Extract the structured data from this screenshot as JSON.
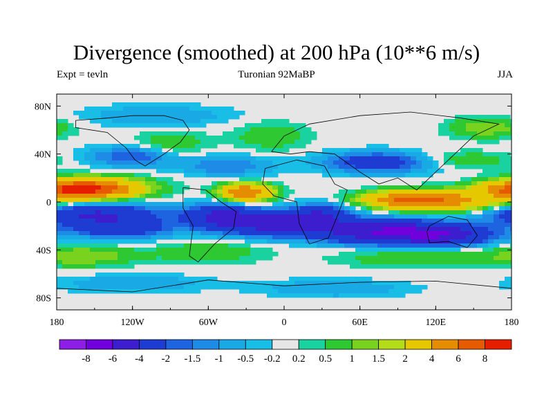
{
  "chart_data": {
    "type": "heatmap",
    "title": "Divergence (smoothed) at 200 hPa (10**6 m/s)",
    "subtitle_left": "Expt = tevln",
    "subtitle_center": "Turonian  92MaBP",
    "subtitle_right": "JJA",
    "x_ticks": [
      "180",
      "120W",
      "60W",
      "0",
      "60E",
      "120E",
      "180"
    ],
    "y_ticks": [
      "80N",
      "40N",
      "0",
      "40S",
      "80S"
    ],
    "x_range": [
      -180,
      180
    ],
    "y_range": [
      -90,
      90
    ],
    "colorbar_levels": [
      "-8",
      "-6",
      "-4",
      "-2",
      "-1.5",
      "-1",
      "-0.5",
      "-0.2",
      "0.2",
      "0.5",
      "1",
      "1.5",
      "2",
      "4",
      "6",
      "8"
    ],
    "colorbar_colors": [
      "#8c1ee6",
      "#7000dc",
      "#3c1ecf",
      "#1e3cd2",
      "#1e64e1",
      "#1e8ce6",
      "#19aae6",
      "#19bee6",
      "#e6e6e6",
      "#19d2a0",
      "#2dc832",
      "#78d21e",
      "#b4dc19",
      "#e6c800",
      "#e68c00",
      "#e65a00",
      "#e61e00"
    ],
    "fields": [
      {
        "lon": -150,
        "lat": 12,
        "sx": 30,
        "sy": 6,
        "v": 4
      },
      {
        "lon": -165,
        "lat": 10,
        "sx": 25,
        "sy": 5,
        "v": 6
      },
      {
        "lon": -150,
        "lat": -10,
        "sx": 35,
        "sy": 6,
        "v": -4
      },
      {
        "lon": -130,
        "lat": -22,
        "sx": 30,
        "sy": 6,
        "v": -3
      },
      {
        "lon": -120,
        "lat": 38,
        "sx": 25,
        "sy": 6,
        "v": -2
      },
      {
        "lon": -30,
        "lat": 8,
        "sx": 14,
        "sy": 5,
        "v": 6
      },
      {
        "lon": -50,
        "lat": -12,
        "sx": 20,
        "sy": 7,
        "v": -4
      },
      {
        "lon": -5,
        "lat": -18,
        "sx": 30,
        "sy": 7,
        "v": -5
      },
      {
        "lon": 30,
        "lat": -10,
        "sx": 15,
        "sy": 6,
        "v": -3
      },
      {
        "lon": 80,
        "lat": -25,
        "sx": 35,
        "sy": 7,
        "v": -6
      },
      {
        "lon": 130,
        "lat": -28,
        "sx": 25,
        "sy": 6,
        "v": -4
      },
      {
        "lon": 100,
        "lat": 2,
        "sx": 25,
        "sy": 5,
        "v": 6
      },
      {
        "lon": 140,
        "lat": 0,
        "sx": 30,
        "sy": 6,
        "v": 3
      },
      {
        "lon": 75,
        "lat": 33,
        "sx": 30,
        "sy": 6,
        "v": -3
      },
      {
        "lon": 140,
        "lat": 35,
        "sx": 30,
        "sy": 5,
        "v": 1
      },
      {
        "lon": 160,
        "lat": 62,
        "sx": 20,
        "sy": 6,
        "v": 1.5
      },
      {
        "lon": -90,
        "lat": 48,
        "sx": 20,
        "sy": 8,
        "v": 1
      },
      {
        "lon": -45,
        "lat": 30,
        "sx": 25,
        "sy": 6,
        "v": -1.5
      },
      {
        "lon": -160,
        "lat": -45,
        "sx": 30,
        "sy": 6,
        "v": 1.5
      },
      {
        "lon": -60,
        "lat": -42,
        "sx": 30,
        "sy": 6,
        "v": 1
      },
      {
        "lon": 100,
        "lat": -46,
        "sx": 40,
        "sy": 6,
        "v": 1
      },
      {
        "lon": -120,
        "lat": -68,
        "sx": 40,
        "sy": 5,
        "v": -1
      },
      {
        "lon": 40,
        "lat": -72,
        "sx": 40,
        "sy": 5,
        "v": -1
      },
      {
        "lon": -100,
        "lat": 72,
        "sx": 40,
        "sy": 6,
        "v": -1
      },
      {
        "lon": -10,
        "lat": 55,
        "sx": 20,
        "sy": 8,
        "v": 1
      }
    ],
    "continent_outlines": [
      [
        [
          -165,
          68
        ],
        [
          -140,
          70
        ],
        [
          -120,
          72
        ],
        [
          -95,
          72
        ],
        [
          -80,
          68
        ],
        [
          -75,
          60
        ],
        [
          -82,
          50
        ],
        [
          -95,
          40
        ],
        [
          -110,
          30
        ],
        [
          -118,
          35
        ],
        [
          -125,
          45
        ],
        [
          -140,
          58
        ],
        [
          -165,
          62
        ],
        [
          -165,
          68
        ]
      ],
      [
        [
          -80,
          12
        ],
        [
          -62,
          10
        ],
        [
          -50,
          0
        ],
        [
          -38,
          -8
        ],
        [
          -40,
          -22
        ],
        [
          -55,
          -35
        ],
        [
          -68,
          -50
        ],
        [
          -75,
          -45
        ],
        [
          -72,
          -20
        ],
        [
          -80,
          -5
        ],
        [
          -80,
          12
        ]
      ],
      [
        [
          -15,
          28
        ],
        [
          10,
          35
        ],
        [
          32,
          30
        ],
        [
          40,
          15
        ],
        [
          50,
          10
        ],
        [
          42,
          -12
        ],
        [
          35,
          -30
        ],
        [
          20,
          -35
        ],
        [
          12,
          -18
        ],
        [
          10,
          0
        ],
        [
          -8,
          5
        ],
        [
          -17,
          15
        ],
        [
          -15,
          28
        ]
      ],
      [
        [
          -10,
          42
        ],
        [
          0,
          55
        ],
        [
          20,
          65
        ],
        [
          60,
          72
        ],
        [
          100,
          75
        ],
        [
          140,
          70
        ],
        [
          170,
          65
        ],
        [
          150,
          55
        ],
        [
          135,
          40
        ],
        [
          120,
          25
        ],
        [
          105,
          10
        ],
        [
          90,
          20
        ],
        [
          75,
          15
        ],
        [
          60,
          25
        ],
        [
          40,
          40
        ],
        [
          20,
          42
        ],
        [
          5,
          40
        ],
        [
          -10,
          42
        ]
      ],
      [
        [
          115,
          -20
        ],
        [
          130,
          -12
        ],
        [
          145,
          -15
        ],
        [
          153,
          -28
        ],
        [
          145,
          -38
        ],
        [
          130,
          -33
        ],
        [
          115,
          -34
        ],
        [
          113,
          -25
        ],
        [
          115,
          -20
        ]
      ],
      [
        [
          -180,
          -72
        ],
        [
          -120,
          -75
        ],
        [
          -60,
          -65
        ],
        [
          0,
          -70
        ],
        [
          60,
          -67
        ],
        [
          120,
          -66
        ],
        [
          180,
          -72
        ]
      ]
    ]
  }
}
